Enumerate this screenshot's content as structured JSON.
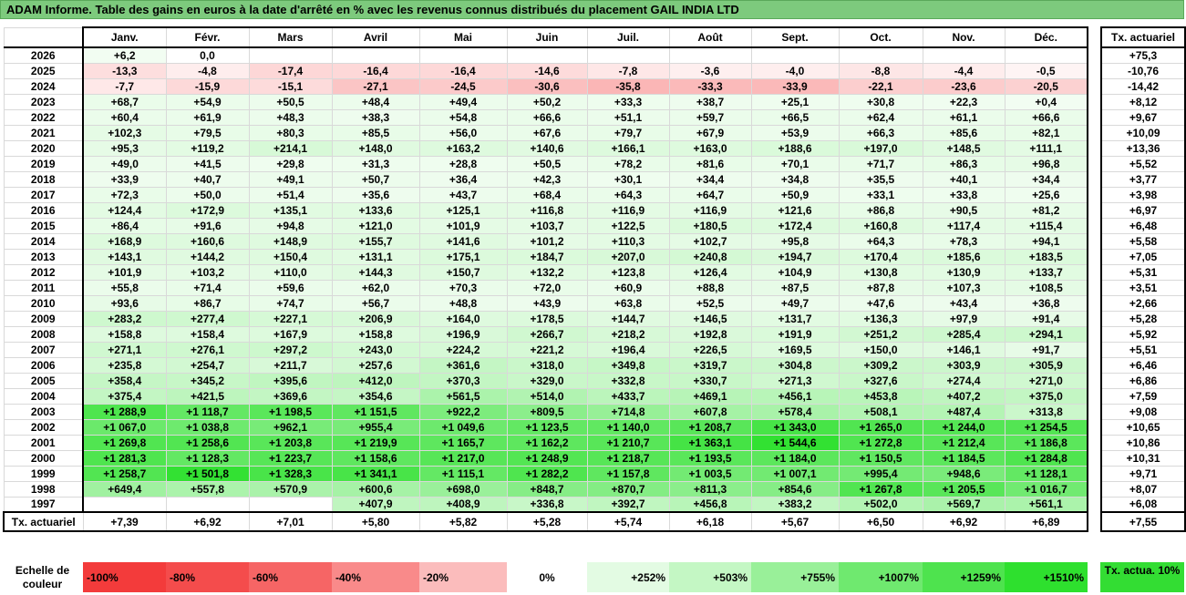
{
  "title": "ADAM Informe. Table des gains en euros à la date d'arrêté en % avec les revenus connus distribués du placement GAIL INDIA LTD",
  "months": [
    "Janv.",
    "Févr.",
    "Mars",
    "Avril",
    "Mai",
    "Juin",
    "Juil.",
    "Août",
    "Sept.",
    "Oct.",
    "Nov.",
    "Déc."
  ],
  "side_header": "Tx. actuariel",
  "rows": [
    {
      "year": "2026",
      "values": [
        "+6,2",
        "0,0",
        "",
        "",
        "",
        "",
        "",
        "",
        "",
        "",
        "",
        ""
      ],
      "tx": "+75,3"
    },
    {
      "year": "2025",
      "values": [
        "-13,3",
        "-4,8",
        "-17,4",
        "-16,4",
        "-16,4",
        "-14,6",
        "-7,8",
        "-3,6",
        "-4,0",
        "-8,8",
        "-4,4",
        "-0,5"
      ],
      "tx": "-10,76"
    },
    {
      "year": "2024",
      "values": [
        "-7,7",
        "-15,9",
        "-15,1",
        "-27,1",
        "-24,5",
        "-30,6",
        "-35,8",
        "-33,3",
        "-33,9",
        "-22,1",
        "-23,6",
        "-20,5"
      ],
      "tx": "-14,42"
    },
    {
      "year": "2023",
      "values": [
        "+68,7",
        "+54,9",
        "+50,5",
        "+48,4",
        "+49,4",
        "+50,2",
        "+33,3",
        "+38,7",
        "+25,1",
        "+30,8",
        "+22,3",
        "+0,4"
      ],
      "tx": "+8,12"
    },
    {
      "year": "2022",
      "values": [
        "+60,4",
        "+61,9",
        "+48,3",
        "+38,3",
        "+54,8",
        "+66,6",
        "+51,1",
        "+59,7",
        "+66,5",
        "+62,4",
        "+61,1",
        "+66,6"
      ],
      "tx": "+9,67"
    },
    {
      "year": "2021",
      "values": [
        "+102,3",
        "+79,5",
        "+80,3",
        "+85,5",
        "+56,0",
        "+67,6",
        "+79,7",
        "+67,9",
        "+53,9",
        "+66,3",
        "+85,6",
        "+82,1"
      ],
      "tx": "+10,09"
    },
    {
      "year": "2020",
      "values": [
        "+95,3",
        "+119,2",
        "+214,1",
        "+148,0",
        "+163,2",
        "+140,6",
        "+166,1",
        "+163,0",
        "+188,6",
        "+197,0",
        "+148,5",
        "+111,1"
      ],
      "tx": "+13,36"
    },
    {
      "year": "2019",
      "values": [
        "+49,0",
        "+41,5",
        "+29,8",
        "+31,3",
        "+28,8",
        "+50,5",
        "+78,2",
        "+81,6",
        "+70,1",
        "+71,7",
        "+86,3",
        "+96,8"
      ],
      "tx": "+5,52"
    },
    {
      "year": "2018",
      "values": [
        "+33,9",
        "+40,7",
        "+49,1",
        "+50,7",
        "+36,4",
        "+42,3",
        "+30,1",
        "+34,4",
        "+34,8",
        "+35,5",
        "+40,1",
        "+34,4"
      ],
      "tx": "+3,77"
    },
    {
      "year": "2017",
      "values": [
        "+72,3",
        "+50,0",
        "+51,4",
        "+35,6",
        "+43,7",
        "+68,4",
        "+64,3",
        "+64,7",
        "+50,9",
        "+33,1",
        "+33,8",
        "+25,6"
      ],
      "tx": "+3,98"
    },
    {
      "year": "2016",
      "values": [
        "+124,4",
        "+172,9",
        "+135,1",
        "+133,6",
        "+125,1",
        "+116,8",
        "+116,9",
        "+116,9",
        "+121,6",
        "+86,8",
        "+90,5",
        "+81,2"
      ],
      "tx": "+6,97"
    },
    {
      "year": "2015",
      "values": [
        "+86,4",
        "+91,6",
        "+94,8",
        "+121,0",
        "+101,9",
        "+103,7",
        "+122,5",
        "+180,5",
        "+172,4",
        "+160,8",
        "+117,4",
        "+115,4"
      ],
      "tx": "+6,48"
    },
    {
      "year": "2014",
      "values": [
        "+168,9",
        "+160,6",
        "+148,9",
        "+155,7",
        "+141,6",
        "+101,2",
        "+110,3",
        "+102,7",
        "+95,8",
        "+64,3",
        "+78,3",
        "+94,1"
      ],
      "tx": "+5,58"
    },
    {
      "year": "2013",
      "values": [
        "+143,1",
        "+144,2",
        "+150,4",
        "+131,1",
        "+175,1",
        "+184,7",
        "+207,0",
        "+240,8",
        "+194,7",
        "+170,4",
        "+185,6",
        "+183,5"
      ],
      "tx": "+7,05"
    },
    {
      "year": "2012",
      "values": [
        "+101,9",
        "+103,2",
        "+110,0",
        "+144,3",
        "+150,7",
        "+132,2",
        "+123,8",
        "+126,4",
        "+104,9",
        "+130,8",
        "+130,9",
        "+133,7"
      ],
      "tx": "+5,31"
    },
    {
      "year": "2011",
      "values": [
        "+55,8",
        "+71,4",
        "+59,6",
        "+62,0",
        "+70,3",
        "+72,0",
        "+60,9",
        "+88,8",
        "+87,5",
        "+87,8",
        "+107,3",
        "+108,5"
      ],
      "tx": "+3,51"
    },
    {
      "year": "2010",
      "values": [
        "+93,6",
        "+86,7",
        "+74,7",
        "+56,7",
        "+48,8",
        "+43,9",
        "+63,8",
        "+52,5",
        "+49,7",
        "+47,6",
        "+43,4",
        "+36,8"
      ],
      "tx": "+2,66"
    },
    {
      "year": "2009",
      "values": [
        "+283,2",
        "+277,4",
        "+227,1",
        "+206,9",
        "+164,0",
        "+178,5",
        "+144,7",
        "+146,5",
        "+131,7",
        "+136,3",
        "+97,9",
        "+91,4"
      ],
      "tx": "+5,28"
    },
    {
      "year": "2008",
      "values": [
        "+158,8",
        "+158,4",
        "+167,9",
        "+158,8",
        "+196,9",
        "+266,7",
        "+218,2",
        "+192,8",
        "+191,9",
        "+251,2",
        "+285,4",
        "+294,1"
      ],
      "tx": "+5,92"
    },
    {
      "year": "2007",
      "values": [
        "+271,1",
        "+276,1",
        "+297,2",
        "+243,0",
        "+224,2",
        "+221,2",
        "+196,4",
        "+226,5",
        "+169,5",
        "+150,0",
        "+146,1",
        "+91,7"
      ],
      "tx": "+5,51"
    },
    {
      "year": "2006",
      "values": [
        "+235,8",
        "+254,7",
        "+211,7",
        "+257,6",
        "+361,6",
        "+318,0",
        "+349,8",
        "+319,7",
        "+304,8",
        "+309,2",
        "+303,9",
        "+305,9"
      ],
      "tx": "+6,46"
    },
    {
      "year": "2005",
      "values": [
        "+358,4",
        "+345,2",
        "+395,6",
        "+412,0",
        "+370,3",
        "+329,0",
        "+332,8",
        "+330,7",
        "+271,3",
        "+327,6",
        "+274,4",
        "+271,0"
      ],
      "tx": "+6,86"
    },
    {
      "year": "2004",
      "values": [
        "+375,4",
        "+421,5",
        "+369,6",
        "+354,6",
        "+561,5",
        "+514,0",
        "+433,7",
        "+469,1",
        "+456,1",
        "+453,8",
        "+407,2",
        "+375,0"
      ],
      "tx": "+7,59"
    },
    {
      "year": "2003",
      "values": [
        "+1 288,9",
        "+1 118,7",
        "+1 198,5",
        "+1 151,5",
        "+922,2",
        "+809,5",
        "+714,8",
        "+607,8",
        "+578,4",
        "+508,1",
        "+487,4",
        "+313,8"
      ],
      "tx": "+9,08"
    },
    {
      "year": "2002",
      "values": [
        "+1 067,0",
        "+1 038,8",
        "+962,1",
        "+955,4",
        "+1 049,6",
        "+1 123,5",
        "+1 140,0",
        "+1 208,7",
        "+1 343,0",
        "+1 265,0",
        "+1 244,0",
        "+1 254,5"
      ],
      "tx": "+10,65"
    },
    {
      "year": "2001",
      "values": [
        "+1 269,8",
        "+1 258,6",
        "+1 203,8",
        "+1 219,9",
        "+1 165,7",
        "+1 162,2",
        "+1 210,7",
        "+1 363,1",
        "+1 544,6",
        "+1 272,8",
        "+1 212,4",
        "+1 186,8"
      ],
      "tx": "+10,86"
    },
    {
      "year": "2000",
      "values": [
        "+1 281,3",
        "+1 128,3",
        "+1 223,7",
        "+1 158,6",
        "+1 217,0",
        "+1 248,9",
        "+1 218,7",
        "+1 193,5",
        "+1 184,0",
        "+1 150,5",
        "+1 184,5",
        "+1 284,8"
      ],
      "tx": "+10,31"
    },
    {
      "year": "1999",
      "values": [
        "+1 258,7",
        "+1 501,8",
        "+1 328,3",
        "+1 341,1",
        "+1 115,1",
        "+1 282,2",
        "+1 157,8",
        "+1 003,5",
        "+1 007,1",
        "+995,4",
        "+948,6",
        "+1 128,1"
      ],
      "tx": "+9,71"
    },
    {
      "year": "1998",
      "values": [
        "+649,4",
        "+557,8",
        "+570,9",
        "+600,6",
        "+698,0",
        "+848,7",
        "+870,7",
        "+811,3",
        "+854,6",
        "+1 267,8",
        "+1 205,5",
        "+1 016,7"
      ],
      "tx": "+8,07"
    },
    {
      "year": "1997",
      "values": [
        "",
        "",
        "",
        "+407,9",
        "+408,9",
        "+336,8",
        "+392,7",
        "+456,8",
        "+383,2",
        "+502,0",
        "+569,7",
        "+561,1"
      ],
      "tx": "+6,08"
    }
  ],
  "footer": {
    "label": "Tx. actuariel",
    "values": [
      "+7,39",
      "+6,92",
      "+7,01",
      "+5,80",
      "+5,82",
      "+5,28",
      "+5,74",
      "+6,18",
      "+5,67",
      "+6,50",
      "+6,92",
      "+6,89"
    ],
    "tx": "+7,55"
  },
  "legend": {
    "label": "Echelle de couleur",
    "cells": [
      {
        "text": "-100%",
        "color": "#f33b3b",
        "align": "left"
      },
      {
        "text": "-80%",
        "color": "#f44c4c",
        "align": "left"
      },
      {
        "text": "-60%",
        "color": "#f66565",
        "align": "left"
      },
      {
        "text": "-40%",
        "color": "#f98a8a",
        "align": "left"
      },
      {
        "text": "-20%",
        "color": "#fbbcbc",
        "align": "left"
      },
      {
        "text": "0%",
        "color": "#ffffff",
        "align": "center"
      },
      {
        "text": "+252%",
        "color": "#e3fbe3",
        "align": "right"
      },
      {
        "text": "+503%",
        "color": "#c4f7c4",
        "align": "right"
      },
      {
        "text": "+755%",
        "color": "#99f099",
        "align": "right"
      },
      {
        "text": "+1007%",
        "color": "#6fe96f",
        "align": "right"
      },
      {
        "text": "+1259%",
        "color": "#4ee34e",
        "align": "right"
      },
      {
        "text": "+1510%",
        "color": "#2ee02e",
        "align": "right"
      }
    ],
    "side": "Tx. actua. 10%",
    "side_color": "#33dd33"
  },
  "colors": {
    "title_bar": "#7dca7d",
    "negative_full": "#f33b3b",
    "positive_full": "#2ee02e"
  }
}
